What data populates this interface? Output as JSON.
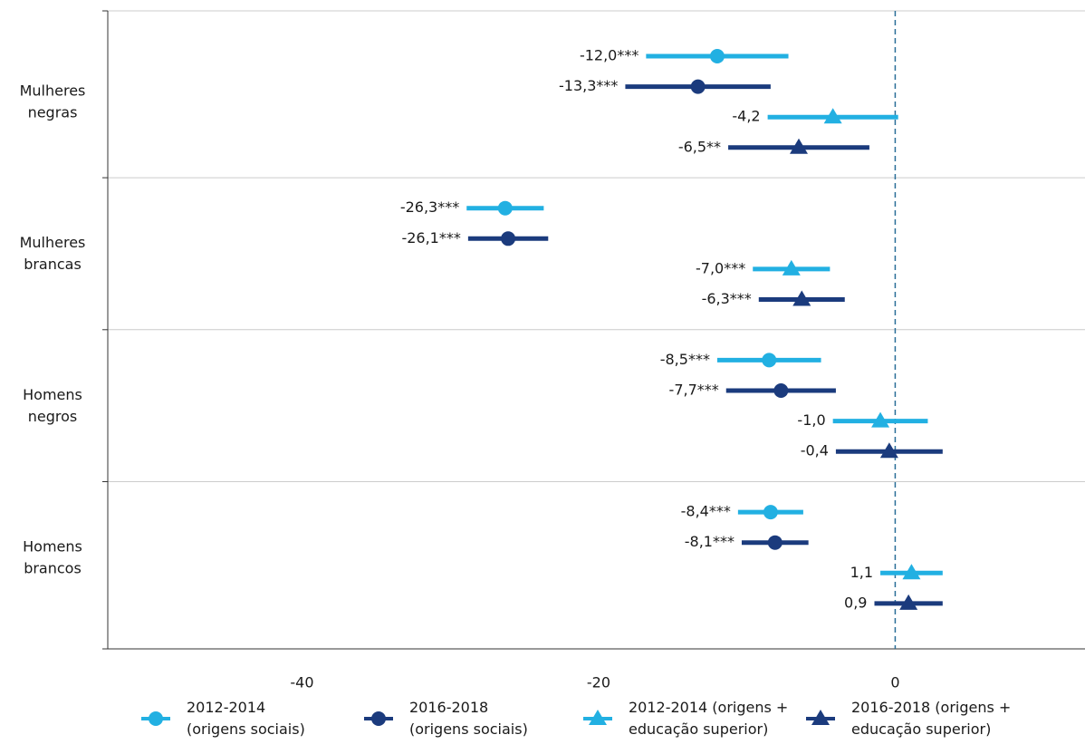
{
  "chart_data": {
    "type": "dot_error",
    "categories": [
      "Mulheres\nnegras",
      "Mulheres\nbrancas",
      "Homens\nnegros",
      "Homens\nbrancos"
    ],
    "series": [
      {
        "name": "2012-2014\n(origens sociais)",
        "color": "#22b0e2",
        "marker": "circle",
        "values": [
          -12.0,
          -26.3,
          -8.5,
          -8.4
        ],
        "errors": [
          4.8,
          2.6,
          3.5,
          2.2
        ],
        "value_labels": [
          "-12,0***",
          "-26,3***",
          "-8,5***",
          "-8,4***"
        ]
      },
      {
        "name": "2016-2018\n(origens sociais)",
        "color": "#1b3b7d",
        "marker": "circle",
        "values": [
          -13.3,
          -26.1,
          -7.7,
          -8.1
        ],
        "errors": [
          4.9,
          2.7,
          3.7,
          2.25
        ],
        "value_labels": [
          "-13,3***",
          "-26,1***",
          "-7,7***",
          "-8,1***"
        ]
      },
      {
        "name": "2012-2014 (origens +\neducação superior)",
        "color": "#22b0e2",
        "marker": "triangle",
        "values": [
          -4.2,
          -7.0,
          -1.0,
          1.1
        ],
        "errors": [
          4.4,
          2.6,
          3.2,
          2.1
        ],
        "value_labels": [
          "-4,2",
          "-7,0***",
          "-1,0",
          "1,1"
        ]
      },
      {
        "name": "2016-2018 (origens +\neducação superior)",
        "color": "#1b3b7d",
        "marker": "triangle",
        "values": [
          -6.5,
          -6.3,
          -0.4,
          0.9
        ],
        "errors": [
          4.76,
          2.9,
          3.6,
          2.3
        ],
        "value_labels": [
          "-6,5**",
          "-6,3***",
          "-0,4",
          "0,9"
        ]
      }
    ],
    "xlim": [
      -53.1,
      12.8
    ],
    "xticks": [
      -40,
      -20,
      0
    ]
  }
}
